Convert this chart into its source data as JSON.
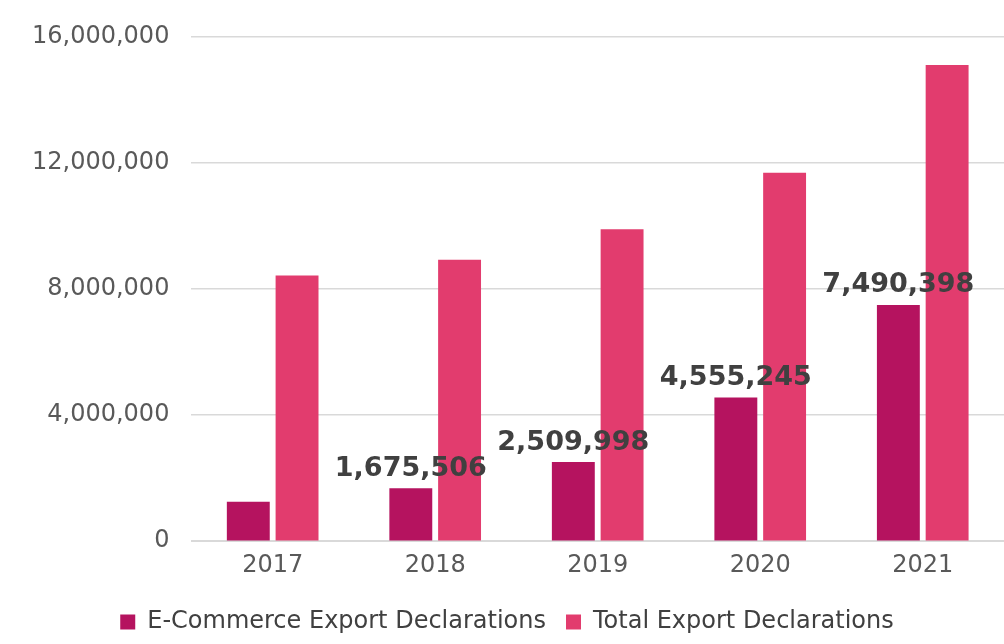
{
  "chart_data": {
    "type": "bar",
    "categories": [
      "2017",
      "2018",
      "2019",
      "2020",
      "2021"
    ],
    "series": [
      {
        "name": "E-Commerce Export Declarations",
        "color": "#b5135f",
        "values": [
          1250000,
          1675506,
          2509998,
          4555245,
          7490398
        ],
        "value_labels": [
          null,
          "1,675,506",
          "2,509,998",
          "4,555,245",
          "7,490,398"
        ]
      },
      {
        "name": "Total Export Declarations",
        "color": "#e23c6e",
        "values": [
          8420000,
          8920000,
          9890000,
          11680000,
          15090000
        ]
      }
    ],
    "ylim": [
      0,
      16000000
    ],
    "yticks": [
      {
        "value": 0,
        "label": "0"
      },
      {
        "value": 4000000,
        "label": "4,000,000"
      },
      {
        "value": 8000000,
        "label": "8,000,000"
      },
      {
        "value": 12000000,
        "label": "12,000,000"
      },
      {
        "value": 16000000,
        "label": "16,000,000"
      }
    ],
    "grid": "y",
    "legend": "bottom"
  }
}
